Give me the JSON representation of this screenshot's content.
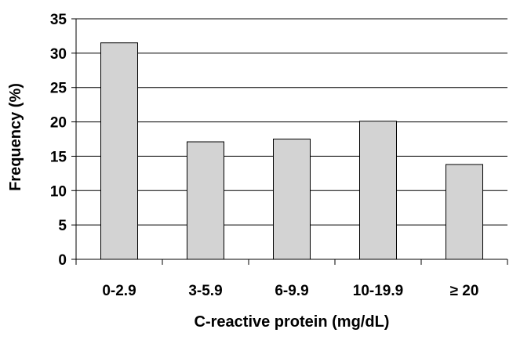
{
  "chart_data": {
    "type": "bar",
    "title": "",
    "xlabel": "C-reactive protein (mg/dL)",
    "ylabel": "Frequency (%)",
    "categories": [
      "0-2.9",
      "3-5.9",
      "6-9.9",
      "10-19.9",
      "≥ 20"
    ],
    "values": [
      31.5,
      17.1,
      17.5,
      20.1,
      13.8
    ],
    "ylim": [
      0,
      35
    ],
    "yticks": [
      0,
      5,
      10,
      15,
      20,
      25,
      30,
      35
    ],
    "grid": true,
    "legend": "none",
    "colors": {
      "bar_fill": "#d3d3d3",
      "bar_stroke": "#000000",
      "grid": "#000000"
    }
  }
}
